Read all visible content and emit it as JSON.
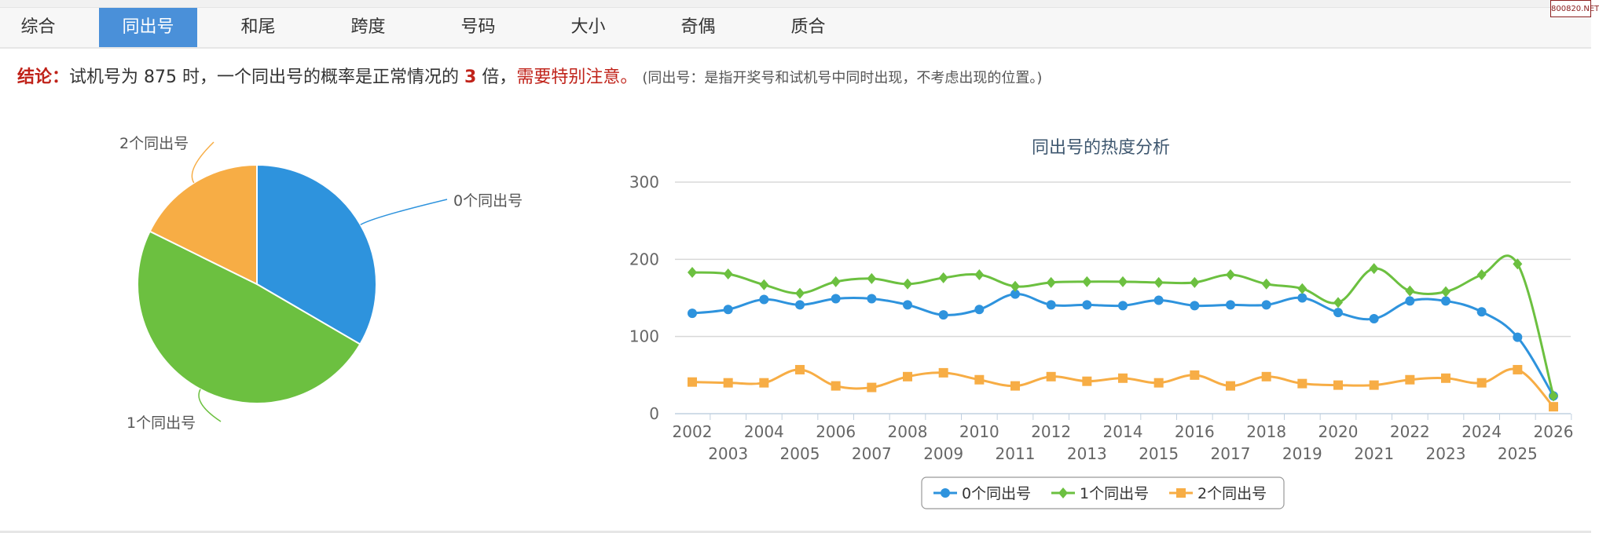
{
  "tabs": [
    {
      "label": "综合",
      "active": false
    },
    {
      "label": "同出号",
      "active": true
    },
    {
      "label": "和尾",
      "active": false
    },
    {
      "label": "跨度",
      "active": false
    },
    {
      "label": "号码",
      "active": false
    },
    {
      "label": "大小",
      "active": false
    },
    {
      "label": "奇偶",
      "active": false
    },
    {
      "label": "质合",
      "active": false
    }
  ],
  "watermark": "800820.NET",
  "conclusion": {
    "label": "结论：",
    "text1": "试机号为 875 时，一个同出号的概率是正常情况的 ",
    "multiplier": "3",
    "text2": " 倍，",
    "warning": "需要特别注意。",
    "note": "(同出号：是指开奖号和试机号中同时出现，不考虑出现的位置。)"
  },
  "chart_data": [
    {
      "type": "pie",
      "slices": [
        {
          "name": "0个同出号",
          "value": 33.4,
          "color": "#2e93dd"
        },
        {
          "name": "1个同出号",
          "value": 48.9,
          "color": "#6cc040"
        },
        {
          "name": "2个同出号",
          "value": 17.7,
          "color": "#f7ad45"
        }
      ]
    },
    {
      "type": "line",
      "title": "同出号的热度分析",
      "ylim": [
        0,
        300
      ],
      "yticks": [
        0,
        100,
        200,
        300
      ],
      "grid": true,
      "legend": "bottom-center",
      "categories": [
        "2002",
        "2003",
        "2004",
        "2005",
        "2006",
        "2007",
        "2008",
        "2009",
        "2010",
        "2011",
        "2012",
        "2013",
        "2014",
        "2015",
        "2016",
        "2017",
        "2018",
        "2019",
        "2020",
        "2021",
        "2022",
        "2023",
        "2024",
        "2025",
        "2026"
      ],
      "series": [
        {
          "name": "0个同出号",
          "color": "#2e93dd",
          "marker": "circle",
          "values": [
            130,
            135,
            148,
            141,
            149,
            149,
            141,
            128,
            135,
            155,
            141,
            141,
            140,
            147,
            140,
            141,
            141,
            150,
            131,
            123,
            146,
            146,
            132,
            99,
            23
          ]
        },
        {
          "name": "1个同出号",
          "color": "#6cc040",
          "marker": "diamond",
          "values": [
            183,
            181,
            167,
            156,
            171,
            175,
            168,
            176,
            180,
            165,
            170,
            171,
            171,
            170,
            170,
            180,
            168,
            162,
            144,
            188,
            159,
            158,
            180,
            194,
            23
          ]
        },
        {
          "name": "2个同出号",
          "color": "#f7ad45",
          "marker": "square",
          "values": [
            41,
            40,
            40,
            57,
            36,
            34,
            48,
            53,
            44,
            36,
            48,
            42,
            46,
            40,
            50,
            36,
            48,
            39,
            37,
            37,
            44,
            46,
            40,
            57,
            9
          ]
        }
      ]
    }
  ]
}
